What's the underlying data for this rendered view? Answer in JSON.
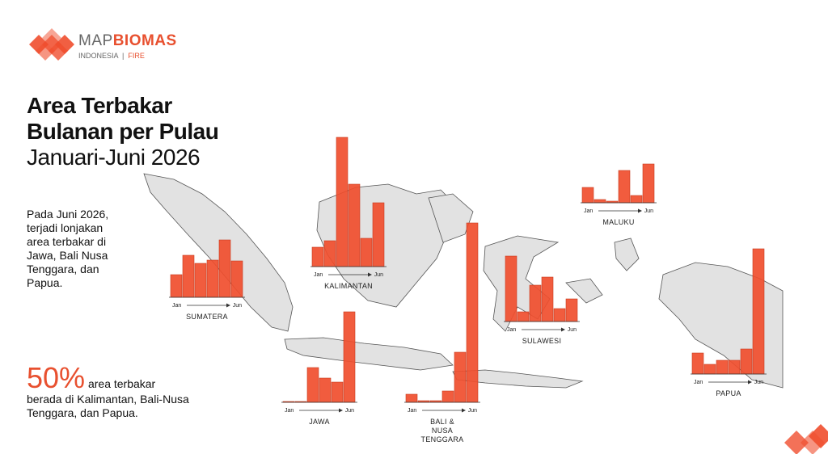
{
  "logo": {
    "brand_light": "MAP",
    "brand_bold": "BIOMAS",
    "region": "INDONESIA",
    "theme": "FIRE"
  },
  "title": [
    "Area Terbakar",
    "Bulanan per Pulau"
  ],
  "subtitle": "Januari-Juni 2026",
  "description": [
    "Pada Juni 2026,",
    "terjadi lonjakan",
    "area terbakar di",
    "Jawa, Bali Nusa",
    "Tenggara, dan",
    "Papua."
  ],
  "highlight": {
    "figure": "50%",
    "text": "area terbakar",
    "lines": [
      "berada di Kalimantan, Bali-Nusa",
      "Tenggara, dan Papua."
    ]
  },
  "chart_data": [
    {
      "type": "bar",
      "title": [
        "SUMATERA"
      ],
      "categories": [
        "Jan",
        null,
        null,
        null,
        null,
        "Jun"
      ],
      "values": [
        28,
        52,
        42,
        46,
        71,
        45
      ],
      "color": "#f04e2e"
    },
    {
      "type": "bar",
      "title": [
        "KALIMANTAN"
      ],
      "categories": [
        "Jan",
        null,
        null,
        null,
        null,
        "Jun"
      ],
      "values": [
        24,
        32,
        160,
        102,
        35,
        79
      ],
      "color": "#f04e2e"
    },
    {
      "type": "bar",
      "title": [
        "MALUKU"
      ],
      "categories": [
        "Jan",
        null,
        null,
        null,
        null,
        "Jun"
      ],
      "values": [
        19,
        4,
        2,
        40,
        9,
        48
      ],
      "color": "#f04e2e"
    },
    {
      "type": "bar",
      "title": [
        "SULAWESI"
      ],
      "categories": [
        "Jan",
        null,
        null,
        null,
        null,
        "Jun"
      ],
      "values": [
        81,
        12,
        45,
        55,
        16,
        28
      ],
      "color": "#f04e2e"
    },
    {
      "type": "bar",
      "title": [
        "JAWA"
      ],
      "categories": [
        "Jan",
        null,
        null,
        null,
        null,
        "Jun"
      ],
      "values": [
        1,
        1,
        43,
        30,
        25,
        112
      ],
      "color": "#f04e2e"
    },
    {
      "type": "bar",
      "title": [
        "BALI &",
        "NUSA",
        "TENGGARA"
      ],
      "categories": [
        "Jan",
        null,
        null,
        null,
        null,
        "Jun"
      ],
      "values": [
        10,
        2,
        2,
        14,
        62,
        222
      ],
      "color": "#f04e2e"
    },
    {
      "type": "bar",
      "title": [
        "PAPUA"
      ],
      "categories": [
        "Jan",
        null,
        null,
        null,
        null,
        "Jun"
      ],
      "values": [
        26,
        12,
        17,
        17,
        31,
        155
      ],
      "color": "#f04e2e"
    }
  ]
}
